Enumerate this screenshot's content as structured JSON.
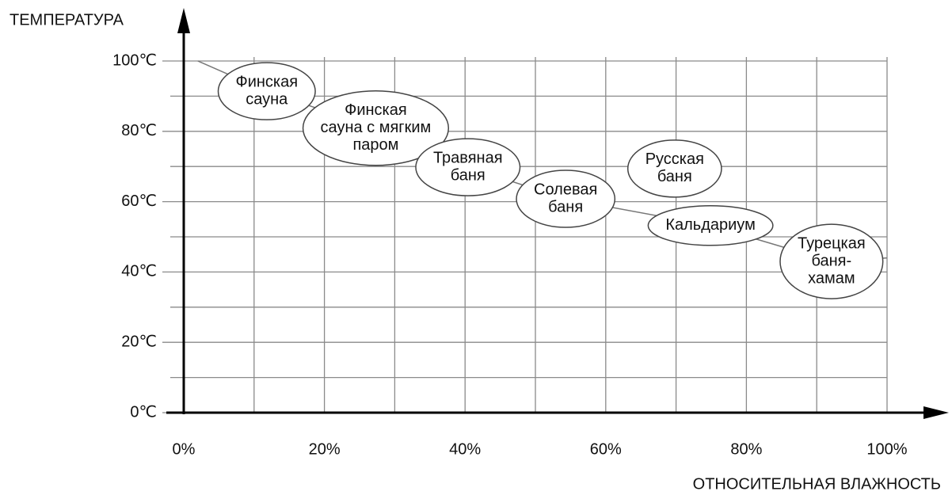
{
  "chart_data": {
    "type": "bubble-labels",
    "y_title": "ТЕМПЕРАТУРА",
    "x_title": "ОТНОСИТЕЛЬНАЯ ВЛАЖНОСТЬ",
    "xlim": [
      0,
      100
    ],
    "ylim": [
      0,
      100
    ],
    "xticks": [
      {
        "value": 0,
        "label": "0%"
      },
      {
        "value": 20,
        "label": "20%"
      },
      {
        "value": 40,
        "label": "40%"
      },
      {
        "value": 60,
        "label": "60%"
      },
      {
        "value": 80,
        "label": "80%"
      },
      {
        "value": 100,
        "label": "100%"
      }
    ],
    "xminor_ticks": [
      10,
      30,
      50,
      70,
      90
    ],
    "yticks": [
      {
        "value": 0,
        "label": "0℃"
      },
      {
        "value": 20,
        "label": "20℃"
      },
      {
        "value": 40,
        "label": "40℃"
      },
      {
        "value": 60,
        "label": "60℃"
      },
      {
        "value": 80,
        "label": "80℃"
      },
      {
        "value": 100,
        "label": "100℃"
      }
    ],
    "yminor_ticks": [
      10,
      30,
      50,
      70,
      90
    ],
    "grid": true,
    "points": [
      {
        "name": [
          "Финская",
          "сауна"
        ],
        "x": 11.8,
        "y": 91.4
      },
      {
        "name": [
          "Финская",
          "сауна с мягким",
          "паром"
        ],
        "x": 27.3,
        "y": 80.9
      },
      {
        "name": [
          "Травяная",
          "баня"
        ],
        "x": 40.4,
        "y": 69.8
      },
      {
        "name": [
          "Солевая",
          "баня"
        ],
        "x": 54.3,
        "y": 60.8
      },
      {
        "name": [
          "Русская",
          "баня"
        ],
        "x": 69.8,
        "y": 69.4
      },
      {
        "name": [
          "Кальдариум"
        ],
        "x": 74.9,
        "y": 53.2
      },
      {
        "name": [
          "Турецкая",
          "баня-",
          "хамам"
        ],
        "x": 92.1,
        "y": 43.0
      }
    ],
    "trend_line": {
      "x": [
        2,
        11.8,
        27.3,
        40.4,
        54.3,
        74.9,
        92.1,
        100
      ],
      "y": [
        100,
        91.4,
        80.9,
        69.8,
        60.8,
        53.2,
        43.0,
        44
      ]
    }
  }
}
